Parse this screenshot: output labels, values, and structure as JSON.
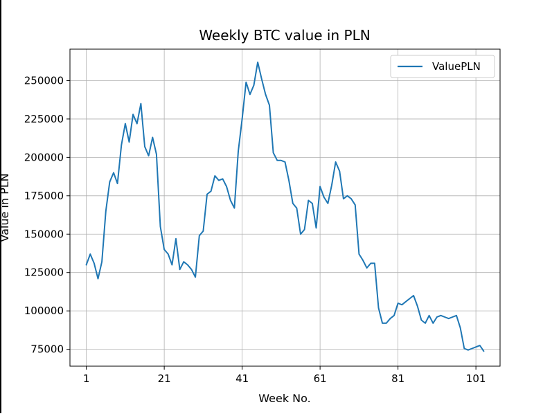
{
  "chart_data": {
    "type": "line",
    "title": "Weekly BTC value in PLN",
    "xlabel": "Week No.",
    "ylabel": "Value in PLN",
    "xlim": [
      -3.2,
      107.2
    ],
    "ylim": [
      64000,
      270500
    ],
    "xticks": [
      1,
      21,
      41,
      61,
      81,
      101
    ],
    "yticks": [
      75000,
      100000,
      125000,
      150000,
      175000,
      200000,
      225000,
      250000
    ],
    "grid": true,
    "legend_position": "top-right",
    "series": [
      {
        "name": "ValuePLN",
        "color": "#1f77b4",
        "x": [
          1,
          2,
          3,
          4,
          5,
          6,
          7,
          8,
          9,
          10,
          11,
          12,
          13,
          14,
          15,
          16,
          17,
          18,
          19,
          20,
          21,
          22,
          23,
          24,
          25,
          26,
          27,
          28,
          29,
          30,
          31,
          32,
          33,
          34,
          35,
          36,
          37,
          38,
          39,
          40,
          41,
          42,
          43,
          44,
          45,
          46,
          47,
          48,
          49,
          50,
          51,
          52,
          53,
          54,
          55,
          56,
          57,
          58,
          59,
          60,
          61,
          62,
          63,
          64,
          65,
          66,
          67,
          68,
          69,
          70,
          71,
          72,
          73,
          74,
          75,
          76,
          77,
          78,
          79,
          80,
          81,
          82,
          83,
          84,
          85,
          86,
          87,
          88,
          89,
          90,
          91,
          92,
          93,
          94,
          95,
          96,
          97,
          98,
          99,
          100,
          101,
          102,
          103
        ],
        "y": [
          130000,
          137000,
          131000,
          121000,
          132000,
          165000,
          184000,
          190000,
          183000,
          208000,
          222000,
          210000,
          228000,
          222000,
          235000,
          207000,
          201000,
          213000,
          202000,
          155000,
          140000,
          137000,
          130000,
          147000,
          127000,
          132000,
          130000,
          127000,
          122000,
          149000,
          152000,
          176000,
          178000,
          188000,
          185000,
          186000,
          181000,
          172000,
          167000,
          204000,
          225000,
          249000,
          241000,
          247000,
          262000,
          251000,
          241000,
          234000,
          203000,
          198000,
          198000,
          197000,
          185000,
          170000,
          167000,
          150000,
          153000,
          172000,
          170000,
          154000,
          181000,
          174000,
          170000,
          182000,
          197000,
          191000,
          173000,
          175000,
          173000,
          169000,
          137000,
          133000,
          128000,
          131000,
          131000,
          102000,
          92000,
          92000,
          95000,
          97000,
          105000,
          104000,
          106000,
          108000,
          110000,
          103000,
          94000,
          92000,
          97000,
          92000,
          96000,
          97000,
          96000,
          95000,
          96000,
          97000,
          89000,
          75500,
          74500,
          75500,
          76500,
          77500,
          73800
        ]
      }
    ]
  }
}
